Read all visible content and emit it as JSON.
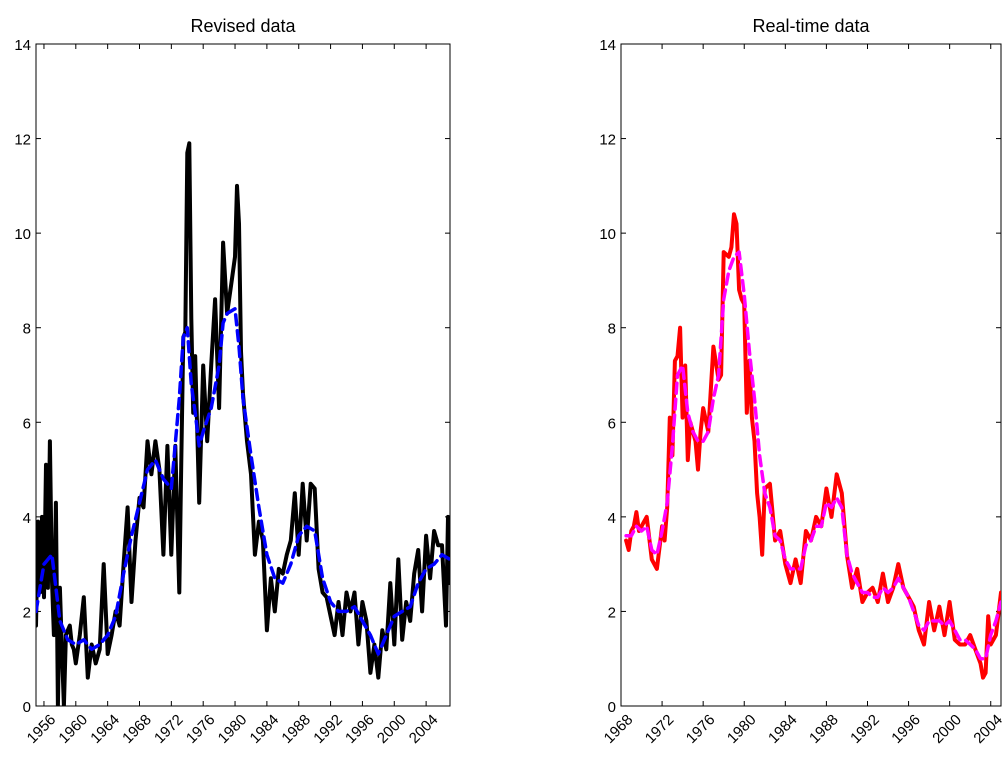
{
  "chart_data": [
    {
      "type": "line",
      "title": "Revised data",
      "xlabel": "",
      "ylabel": "",
      "xlim": [
        1955,
        2007
      ],
      "ylim": [
        0,
        14
      ],
      "yticks": [
        "0",
        "2",
        "4",
        "6",
        "8",
        "10",
        "12",
        "14"
      ],
      "xticks": [
        "1956",
        "1960",
        "1964",
        "1968",
        "1972",
        "1976",
        "1980",
        "1984",
        "1988",
        "1992",
        "1996",
        "2000",
        "2004"
      ],
      "grid": false,
      "colors": {
        "series1": "#000000",
        "series2": "#0000ff"
      },
      "series": [
        {
          "style": "solid",
          "x": [
            1955.0,
            1955.25,
            1955.5,
            1955.75,
            1956.0,
            1956.25,
            1956.5,
            1956.75,
            1957.0,
            1957.25,
            1957.5,
            1957.75,
            1958.0,
            1958.25,
            1958.5,
            1958.75,
            1959.0,
            1959.25,
            1959.5,
            1959.75,
            1960.0,
            1960.5,
            1961.0,
            1961.5,
            1962.0,
            1962.5,
            1963.0,
            1963.5,
            1964.0,
            1964.5,
            1965.0,
            1965.5,
            1966.0,
            1966.5,
            1967.0,
            1967.5,
            1968.0,
            1968.5,
            1969.0,
            1969.5,
            1970.0,
            1970.5,
            1971.0,
            1971.5,
            1972.0,
            1972.5,
            1973.0,
            1973.25,
            1973.5,
            1973.75,
            1974.0,
            1974.25,
            1974.5,
            1974.75,
            1975.0,
            1975.5,
            1976.0,
            1976.5,
            1977.0,
            1977.5,
            1978.0,
            1978.5,
            1979.0,
            1979.5,
            1980.0,
            1980.25,
            1980.5,
            1980.75,
            1981.0,
            1981.5,
            1982.0,
            1982.5,
            1983.0,
            1983.5,
            1984.0,
            1984.5,
            1985.0,
            1985.5,
            1986.0,
            1986.5,
            1987.0,
            1987.5,
            1988.0,
            1988.5,
            1989.0,
            1989.5,
            1990.0,
            1990.5,
            1991.0,
            1991.5,
            1992.0,
            1992.5,
            1993.0,
            1993.5,
            1994.0,
            1994.5,
            1995.0,
            1995.5,
            1996.0,
            1996.5,
            1997.0,
            1997.5,
            1998.0,
            1998.5,
            1999.0,
            1999.5,
            2000.0,
            2000.5,
            2001.0,
            2001.5,
            2002.0,
            2002.5,
            2003.0,
            2003.5,
            2004.0,
            2004.5,
            2005.0,
            2005.5,
            2006.0,
            2006.5,
            2006.75,
            2007.0
          ],
          "y": [
            1.7,
            3.9,
            2.4,
            4.0,
            2.3,
            5.1,
            2.5,
            5.6,
            2.7,
            1.5,
            4.3,
            0.0,
            2.5,
            1.2,
            0.0,
            1.5,
            1.6,
            1.7,
            1.3,
            1.2,
            0.9,
            1.5,
            2.3,
            0.6,
            1.3,
            0.9,
            1.2,
            3.0,
            1.1,
            1.5,
            2.0,
            1.7,
            3.0,
            4.2,
            2.2,
            3.5,
            4.4,
            4.2,
            5.6,
            4.9,
            5.6,
            5.0,
            3.2,
            5.5,
            3.2,
            5.5,
            2.4,
            5.2,
            7.8,
            7.9,
            11.7,
            11.9,
            8.2,
            6.2,
            7.4,
            4.3,
            7.2,
            5.6,
            7.2,
            8.6,
            6.3,
            9.8,
            8.3,
            8.9,
            9.5,
            11.0,
            10.2,
            7.5,
            6.6,
            5.6,
            4.9,
            3.2,
            3.9,
            3.5,
            1.6,
            2.7,
            2.0,
            2.9,
            2.8,
            3.2,
            3.5,
            4.5,
            3.2,
            4.7,
            3.5,
            4.7,
            4.6,
            2.9,
            2.4,
            2.3,
            1.9,
            1.5,
            2.2,
            1.5,
            2.4,
            2.0,
            2.4,
            1.3,
            2.2,
            1.8,
            0.7,
            1.3,
            0.6,
            1.6,
            1.2,
            2.6,
            1.3,
            3.1,
            1.4,
            2.2,
            1.8,
            2.8,
            3.3,
            2.0,
            3.6,
            2.7,
            3.7,
            3.4,
            3.4,
            1.7,
            4.0,
            2.6
          ]
        },
        {
          "style": "dashed",
          "x": [
            1955.0,
            1956.0,
            1957.0,
            1958.0,
            1959.0,
            1960.0,
            1961.0,
            1962.0,
            1963.0,
            1964.0,
            1965.0,
            1966.0,
            1967.0,
            1968.0,
            1969.0,
            1970.0,
            1971.0,
            1972.0,
            1973.0,
            1973.5,
            1974.0,
            1974.5,
            1975.0,
            1975.5,
            1976.0,
            1977.0,
            1978.0,
            1978.5,
            1979.0,
            1980.0,
            1980.5,
            1981.0,
            1982.0,
            1983.0,
            1984.0,
            1985.0,
            1986.0,
            1987.0,
            1988.0,
            1989.0,
            1990.0,
            1991.0,
            1992.0,
            1993.0,
            1994.0,
            1995.0,
            1996.0,
            1997.0,
            1998.0,
            1999.0,
            2000.0,
            2001.0,
            2002.0,
            2003.0,
            2004.0,
            2005.0,
            2006.0,
            2007.0
          ],
          "y": [
            2.0,
            3.0,
            3.2,
            1.8,
            1.4,
            1.3,
            1.4,
            1.2,
            1.3,
            1.5,
            1.9,
            2.8,
            3.6,
            4.3,
            5.0,
            5.2,
            4.8,
            4.6,
            6.5,
            7.8,
            8.0,
            6.8,
            6.2,
            5.5,
            5.8,
            6.3,
            7.2,
            8.1,
            8.3,
            8.4,
            7.6,
            6.5,
            5.3,
            4.2,
            3.2,
            2.7,
            2.6,
            3.0,
            3.6,
            3.8,
            3.7,
            2.7,
            2.2,
            2.0,
            2.0,
            2.1,
            1.8,
            1.5,
            1.1,
            1.5,
            1.9,
            2.0,
            2.1,
            2.6,
            2.9,
            3.0,
            3.2,
            3.1
          ]
        }
      ]
    },
    {
      "type": "line",
      "title": "Real-time data",
      "xlabel": "",
      "ylabel": "",
      "xlim": [
        1968,
        2005
      ],
      "ylim": [
        0,
        14
      ],
      "yticks": [
        "0",
        "2",
        "4",
        "6",
        "8",
        "10",
        "12",
        "14"
      ],
      "xticks": [
        "1968",
        "1972",
        "1976",
        "1980",
        "1984",
        "1988",
        "1992",
        "1996",
        "2000",
        "2004"
      ],
      "grid": false,
      "colors": {
        "series1": "#ff0000",
        "series2": "#ff00ff"
      },
      "series": [
        {
          "style": "solid",
          "x": [
            1968.5,
            1968.75,
            1969.0,
            1969.25,
            1969.5,
            1969.75,
            1970.0,
            1970.5,
            1971.0,
            1971.5,
            1972.0,
            1972.25,
            1972.5,
            1972.75,
            1973.0,
            1973.25,
            1973.5,
            1973.75,
            1974.0,
            1974.25,
            1974.5,
            1974.75,
            1975.0,
            1975.25,
            1975.5,
            1975.75,
            1976.0,
            1976.5,
            1977.0,
            1977.5,
            1977.75,
            1978.0,
            1978.5,
            1978.75,
            1979.0,
            1979.25,
            1979.5,
            1979.75,
            1980.0,
            1980.25,
            1980.5,
            1980.75,
            1981.0,
            1981.25,
            1981.5,
            1981.75,
            1982.0,
            1982.5,
            1983.0,
            1983.5,
            1984.0,
            1984.5,
            1985.0,
            1985.5,
            1986.0,
            1986.5,
            1987.0,
            1987.5,
            1988.0,
            1988.5,
            1989.0,
            1989.5,
            1990.0,
            1990.5,
            1991.0,
            1991.5,
            1992.0,
            1992.5,
            1993.0,
            1993.5,
            1994.0,
            1994.5,
            1995.0,
            1995.5,
            1996.0,
            1996.5,
            1997.0,
            1997.5,
            1998.0,
            1998.5,
            1999.0,
            1999.5,
            2000.0,
            2000.5,
            2001.0,
            2001.5,
            2002.0,
            2002.5,
            2003.0,
            2003.25,
            2003.5,
            2003.75,
            2004.0,
            2004.5,
            2005.0
          ],
          "y": [
            3.5,
            3.3,
            3.7,
            3.8,
            4.1,
            3.7,
            3.8,
            4.0,
            3.1,
            2.9,
            3.8,
            3.5,
            4.2,
            6.1,
            5.3,
            7.3,
            7.4,
            8.0,
            6.1,
            7.2,
            5.2,
            6.0,
            5.8,
            5.6,
            5.0,
            5.8,
            6.3,
            5.8,
            7.6,
            6.9,
            7.0,
            9.6,
            9.5,
            9.7,
            10.4,
            10.2,
            8.8,
            8.6,
            8.5,
            6.2,
            7.3,
            6.1,
            5.6,
            4.5,
            4.0,
            3.2,
            4.6,
            4.7,
            3.5,
            3.7,
            3.0,
            2.6,
            3.1,
            2.6,
            3.7,
            3.5,
            4.0,
            3.8,
            4.6,
            4.0,
            4.9,
            4.5,
            3.2,
            2.5,
            2.9,
            2.2,
            2.4,
            2.5,
            2.2,
            2.8,
            2.2,
            2.5,
            3.0,
            2.5,
            2.3,
            2.1,
            1.6,
            1.3,
            2.2,
            1.6,
            2.1,
            1.5,
            2.2,
            1.4,
            1.3,
            1.3,
            1.5,
            1.2,
            0.9,
            0.6,
            0.7,
            1.9,
            1.3,
            1.5,
            2.4
          ]
        },
        {
          "style": "dashed",
          "x": [
            1968.5,
            1969.0,
            1969.5,
            1970.0,
            1970.5,
            1971.0,
            1971.5,
            1972.0,
            1972.5,
            1973.0,
            1973.5,
            1974.0,
            1974.5,
            1975.0,
            1975.5,
            1976.0,
            1976.5,
            1977.0,
            1977.5,
            1978.0,
            1978.5,
            1979.0,
            1979.5,
            1980.0,
            1980.5,
            1981.0,
            1981.5,
            1982.0,
            1982.5,
            1983.0,
            1983.5,
            1984.0,
            1984.5,
            1985.0,
            1985.5,
            1986.0,
            1986.5,
            1987.0,
            1987.5,
            1988.0,
            1988.5,
            1989.0,
            1989.5,
            1990.0,
            1990.5,
            1991.0,
            1991.5,
            1992.0,
            1992.5,
            1993.0,
            1993.5,
            1994.0,
            1994.5,
            1995.0,
            1995.5,
            1996.0,
            1996.5,
            1997.0,
            1997.5,
            1998.0,
            1998.5,
            1999.0,
            1999.5,
            2000.0,
            2000.5,
            2001.0,
            2001.5,
            2002.0,
            2002.5,
            2003.0,
            2003.5,
            2004.0,
            2004.5,
            2005.0
          ],
          "y": [
            3.6,
            3.6,
            3.8,
            3.7,
            3.8,
            3.3,
            3.2,
            3.7,
            4.3,
            5.5,
            7.0,
            7.2,
            6.2,
            5.8,
            5.6,
            5.6,
            5.8,
            6.5,
            7.0,
            8.6,
            9.2,
            9.5,
            9.6,
            8.7,
            7.5,
            6.5,
            5.3,
            4.5,
            4.2,
            3.6,
            3.5,
            3.1,
            2.9,
            2.9,
            2.9,
            3.4,
            3.5,
            3.8,
            3.8,
            4.3,
            4.2,
            4.4,
            4.2,
            3.2,
            2.8,
            2.6,
            2.4,
            2.4,
            2.3,
            2.3,
            2.5,
            2.4,
            2.5,
            2.7,
            2.5,
            2.3,
            2.0,
            1.7,
            1.6,
            1.8,
            1.8,
            1.8,
            1.7,
            1.8,
            1.6,
            1.4,
            1.4,
            1.3,
            1.2,
            1.0,
            1.0,
            1.5,
            1.8,
            2.2
          ]
        }
      ]
    }
  ]
}
